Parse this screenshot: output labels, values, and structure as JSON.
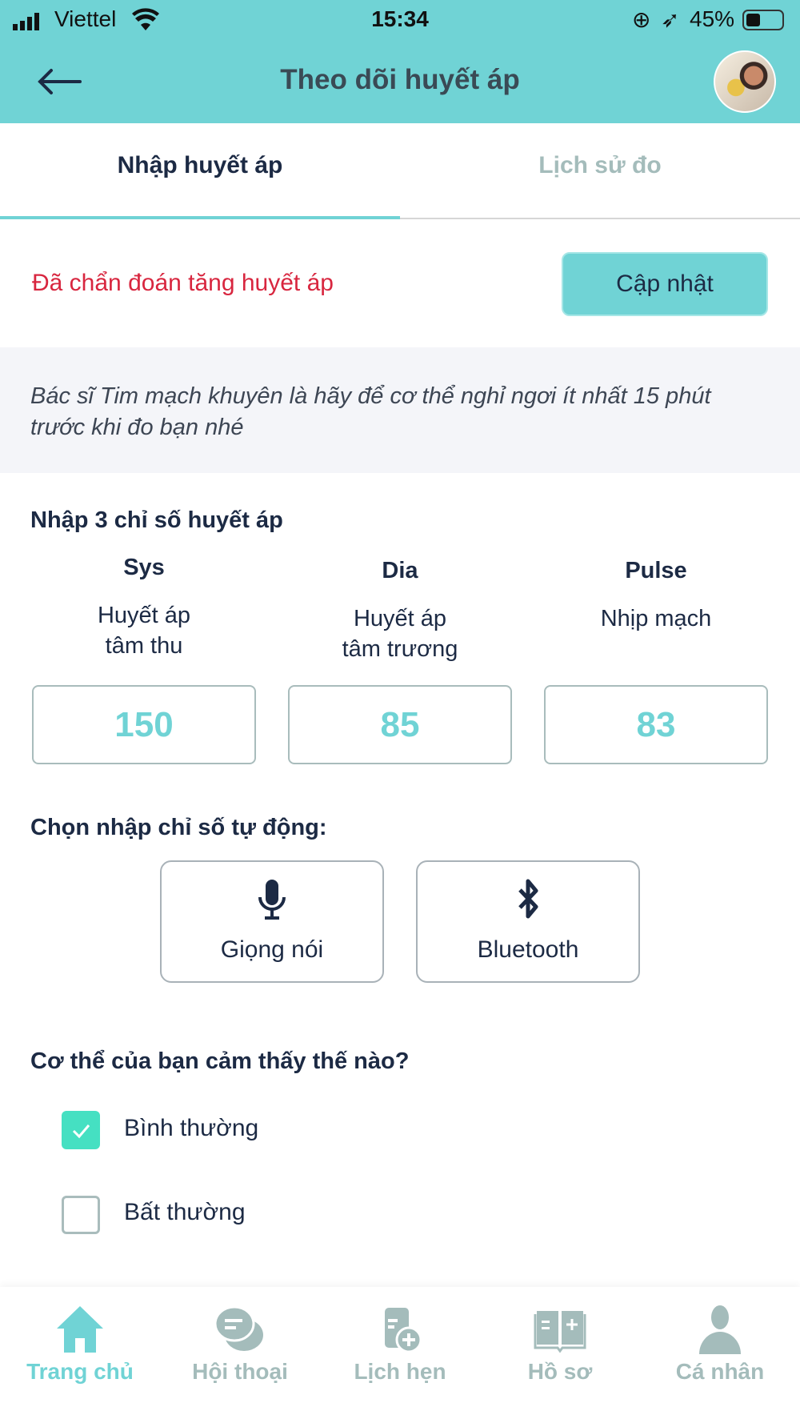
{
  "status_bar": {
    "carrier": "Viettel",
    "time": "15:34",
    "battery": "45%"
  },
  "header": {
    "title": "Theo dõi huyết áp"
  },
  "tabs": [
    {
      "label": "Nhập huyết áp",
      "active": true
    },
    {
      "label": "Lịch sử đo",
      "active": false
    }
  ],
  "diagnosis": {
    "text": "Đã chẩn đoán tăng huyết áp",
    "button": "Cập nhật"
  },
  "tip": "Bác sĩ Tim mạch khuyên là hãy để cơ thể nghỉ ngơi ít nhất 15 phút trước khi đo bạn nhé",
  "inputs": {
    "heading": "Nhập 3 chỉ số huyết áp",
    "fields": [
      {
        "key": "Sys",
        "desc1": "Huyết áp",
        "desc2": "tâm thu",
        "value": "150"
      },
      {
        "key": "Dia",
        "desc1": "Huyết áp",
        "desc2": "tâm trương",
        "value": "85"
      },
      {
        "key": "Pulse",
        "desc1": "Nhịp mạch",
        "desc2": "",
        "value": "83"
      }
    ]
  },
  "auto": {
    "heading": "Chọn nhập chỉ số tự động:",
    "voice": "Giọng nói",
    "bluetooth": "Bluetooth"
  },
  "feeling": {
    "heading": "Cơ thể của bạn cảm thấy thế nào?",
    "options": [
      {
        "label": "Bình thường",
        "checked": true
      },
      {
        "label": "Bất thường",
        "checked": false
      }
    ]
  },
  "nav": [
    {
      "label": "Trang chủ",
      "icon": "home-icon",
      "active": true
    },
    {
      "label": "Hội thoại",
      "icon": "chat-icon"
    },
    {
      "label": "Lịch hẹn",
      "icon": "calendar-plus-icon"
    },
    {
      "label": "Hồ sơ",
      "icon": "book-icon"
    },
    {
      "label": "Cá nhân",
      "icon": "person-icon"
    }
  ],
  "colors": {
    "accent": "#70d3d5",
    "danger": "#d8263f",
    "check": "#45e0c2",
    "inactive": "#a4bcbb"
  }
}
